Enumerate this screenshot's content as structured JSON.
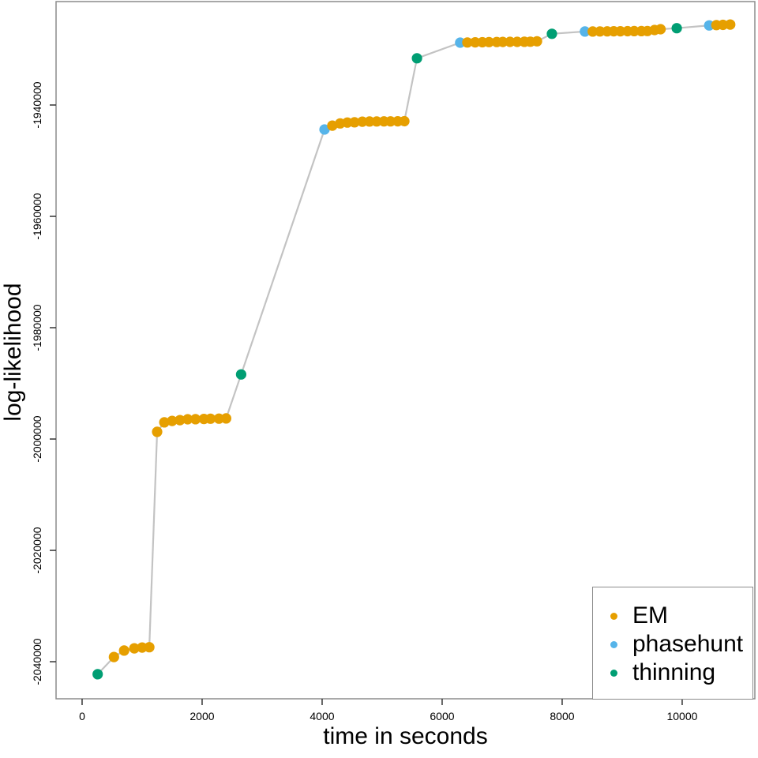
{
  "chart_data": {
    "type": "scatter",
    "title": "",
    "xlabel": "time in seconds",
    "ylabel": "log-likelihood",
    "x_ticks": [
      0,
      2000,
      4000,
      6000,
      8000,
      10000
    ],
    "y_ticks": [
      -1940000,
      -1960000,
      -1980000,
      -2000000,
      -2020000,
      -2040000
    ],
    "xlim": [
      -434,
      11211
    ],
    "ylim": [
      -2046660,
      -1921420
    ],
    "grid": "off",
    "legend_position": "bottom-right",
    "connector_line_color": "#c3c3c3",
    "frame_color": "#8c8c8c",
    "tick_color": "#333333",
    "series": [
      {
        "name": "EM",
        "color": "#E69F00"
      },
      {
        "name": "phasehunt",
        "color": "#56B4E9"
      },
      {
        "name": "thinning",
        "color": "#009E73"
      }
    ],
    "points_columns": [
      "time_seconds",
      "log_likelihood",
      "method"
    ],
    "points": [
      [
        260,
        -2042250,
        "thinning"
      ],
      [
        530,
        -2039150,
        "EM"
      ],
      [
        700,
        -2038000,
        "EM"
      ],
      [
        870,
        -2037600,
        "EM"
      ],
      [
        1000,
        -2037450,
        "EM"
      ],
      [
        1120,
        -2037400,
        "EM"
      ],
      [
        1250,
        -1998700,
        "EM"
      ],
      [
        1370,
        -1997000,
        "EM"
      ],
      [
        1500,
        -1996750,
        "EM"
      ],
      [
        1630,
        -1996600,
        "EM"
      ],
      [
        1760,
        -1996450,
        "EM"
      ],
      [
        1890,
        -1996430,
        "EM"
      ],
      [
        2030,
        -1996400,
        "EM"
      ],
      [
        2140,
        -1996350,
        "EM"
      ],
      [
        2280,
        -1996330,
        "EM"
      ],
      [
        2400,
        -1996300,
        "EM"
      ],
      [
        2650,
        -1988400,
        "thinning"
      ],
      [
        4040,
        -1944400,
        "phasehunt"
      ],
      [
        4170,
        -1943700,
        "EM"
      ],
      [
        4300,
        -1943300,
        "EM"
      ],
      [
        4420,
        -1943150,
        "EM"
      ],
      [
        4540,
        -1943100,
        "EM"
      ],
      [
        4670,
        -1943000,
        "EM"
      ],
      [
        4790,
        -1942970,
        "EM"
      ],
      [
        4910,
        -1942950,
        "EM"
      ],
      [
        5030,
        -1942940,
        "EM"
      ],
      [
        5140,
        -1942930,
        "EM"
      ],
      [
        5260,
        -1942920,
        "EM"
      ],
      [
        5370,
        -1942910,
        "EM"
      ],
      [
        5580,
        -1931600,
        "thinning"
      ],
      [
        6300,
        -1928800,
        "phasehunt"
      ],
      [
        6420,
        -1928770,
        "EM"
      ],
      [
        6550,
        -1928740,
        "EM"
      ],
      [
        6670,
        -1928720,
        "EM"
      ],
      [
        6780,
        -1928700,
        "EM"
      ],
      [
        6910,
        -1928680,
        "EM"
      ],
      [
        7010,
        -1928670,
        "EM"
      ],
      [
        7130,
        -1928660,
        "EM"
      ],
      [
        7250,
        -1928650,
        "EM"
      ],
      [
        7370,
        -1928640,
        "EM"
      ],
      [
        7470,
        -1928630,
        "EM"
      ],
      [
        7580,
        -1928550,
        "EM"
      ],
      [
        7830,
        -1927200,
        "thinning"
      ],
      [
        8380,
        -1926800,
        "phasehunt"
      ],
      [
        8510,
        -1926790,
        "EM"
      ],
      [
        8630,
        -1926780,
        "EM"
      ],
      [
        8750,
        -1926770,
        "EM"
      ],
      [
        8860,
        -1926760,
        "EM"
      ],
      [
        8970,
        -1926750,
        "EM"
      ],
      [
        9090,
        -1926740,
        "EM"
      ],
      [
        9200,
        -1926730,
        "EM"
      ],
      [
        9320,
        -1926720,
        "EM"
      ],
      [
        9420,
        -1926710,
        "EM"
      ],
      [
        9540,
        -1926520,
        "EM"
      ],
      [
        9640,
        -1926380,
        "EM"
      ],
      [
        9910,
        -1926200,
        "thinning"
      ],
      [
        10450,
        -1925700,
        "phasehunt"
      ],
      [
        10570,
        -1925650,
        "EM"
      ],
      [
        10680,
        -1925600,
        "EM"
      ],
      [
        10800,
        -1925550,
        "EM"
      ]
    ]
  },
  "legend": {
    "items": [
      {
        "label": "EM",
        "color": "#E69F00"
      },
      {
        "label": "phasehunt",
        "color": "#56B4E9"
      },
      {
        "label": "thinning",
        "color": "#009E73"
      }
    ]
  }
}
